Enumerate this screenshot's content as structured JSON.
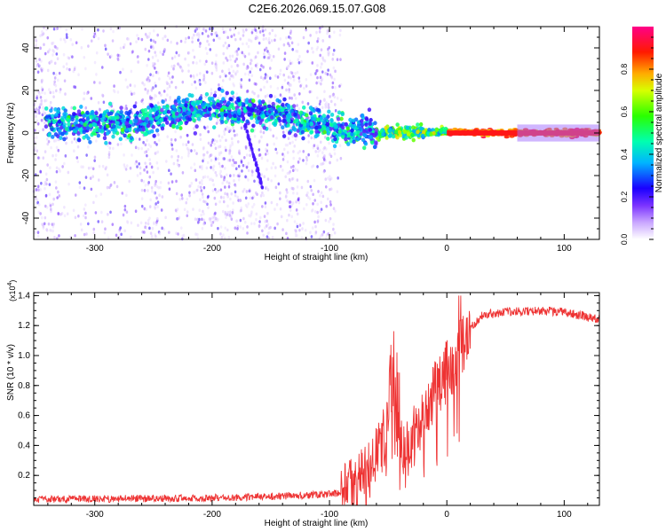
{
  "title": "C2E6.2026.069.15.07.G08",
  "chart_data": [
    {
      "type": "heatmap",
      "name": "spectrogram",
      "xlabel": "Height of straight line (km)",
      "ylabel": "Frequency (Hz)",
      "xlim": [
        -352,
        130
      ],
      "ylim": [
        -50,
        50
      ],
      "xticks": [
        -300,
        -200,
        -100,
        0,
        100
      ],
      "yticks": [
        -40,
        -20,
        0,
        20,
        40
      ],
      "colorbar": {
        "label": "Normalized spectral amplitude",
        "range": [
          0,
          1
        ],
        "ticks": [
          "0.0",
          "0.2",
          "0.4",
          "0.6",
          "0.8"
        ],
        "colormap": [
          "#ffffff",
          "#a066ff",
          "#0000ff",
          "#00ccff",
          "#00ff66",
          "#66ff00",
          "#ffff00",
          "#ff8800",
          "#ff0000",
          "#ff00aa"
        ]
      },
      "signal_band": {
        "description_points": [
          {
            "x": -340,
            "f": 5
          },
          {
            "x": -300,
            "f": 4
          },
          {
            "x": -250,
            "f": 6
          },
          {
            "x": -220,
            "f": 11
          },
          {
            "x": -180,
            "f": 11
          },
          {
            "x": -140,
            "f": 8
          },
          {
            "x": -100,
            "f": 3
          },
          {
            "x": -60,
            "f": 0
          },
          {
            "x": -30,
            "f": 0.5
          },
          {
            "x": 0,
            "f": 0.5
          },
          {
            "x": 50,
            "f": 0
          },
          {
            "x": 130,
            "f": 0
          }
        ],
        "noise_end_x": -90
      }
    },
    {
      "type": "line",
      "name": "snr",
      "xlabel": "Height of straight line (km)",
      "ylabel": "SNR (10 * v/v)",
      "multiplier_label": "(x10",
      "multiplier_exp": "4",
      "xlim": [
        -352,
        130
      ],
      "ylim": [
        0,
        1.42
      ],
      "xticks": [
        -300,
        -200,
        -100,
        0,
        100
      ],
      "yticks": [
        0.2,
        0.4,
        0.6,
        0.8,
        1.0,
        1.2,
        1.4
      ],
      "ytick_labels": [
        "0.2",
        "0.4",
        "0.6",
        "0.8",
        "1.0",
        "1.2",
        "1.4"
      ],
      "color": "#ee3333",
      "envelope": [
        {
          "x": -352,
          "y": 0.04
        },
        {
          "x": -200,
          "y": 0.05
        },
        {
          "x": -110,
          "y": 0.07
        },
        {
          "x": -90,
          "y": 0.08
        },
        {
          "x": -75,
          "y": 0.15
        },
        {
          "x": -60,
          "y": 0.3
        },
        {
          "x": -50,
          "y": 0.55
        },
        {
          "x": -45,
          "y": 0.85
        },
        {
          "x": -38,
          "y": 0.35
        },
        {
          "x": -30,
          "y": 0.45
        },
        {
          "x": -20,
          "y": 0.55
        },
        {
          "x": -10,
          "y": 0.75
        },
        {
          "x": 0,
          "y": 0.9
        },
        {
          "x": 10,
          "y": 1.0
        },
        {
          "x": 20,
          "y": 1.18
        },
        {
          "x": 30,
          "y": 1.27
        },
        {
          "x": 50,
          "y": 1.29
        },
        {
          "x": 80,
          "y": 1.3
        },
        {
          "x": 100,
          "y": 1.29
        },
        {
          "x": 130,
          "y": 1.24
        }
      ]
    }
  ]
}
